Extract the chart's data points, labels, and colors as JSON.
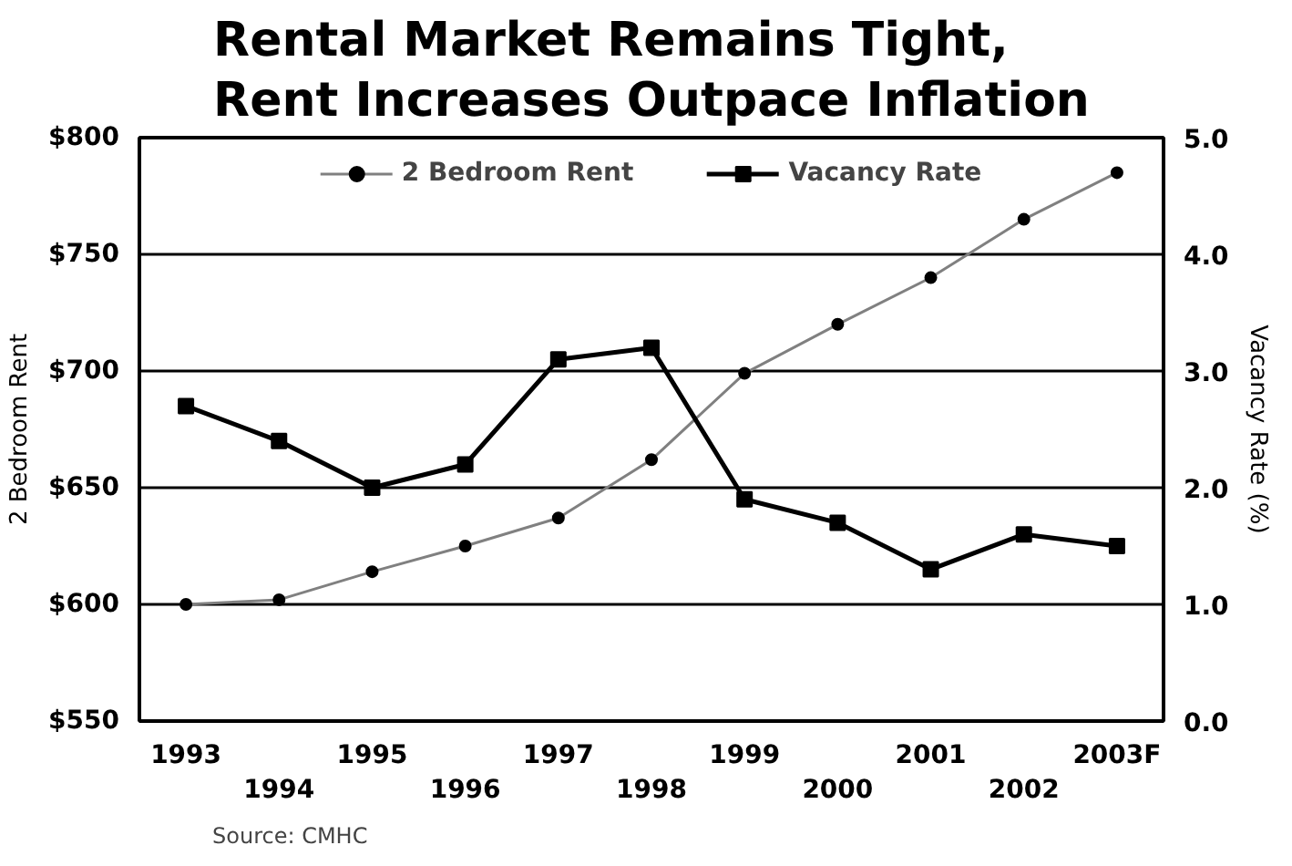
{
  "chart_data": {
    "type": "line",
    "title": "Rental Market Remains Tight,\nRent Increases Outpace Inflation",
    "categories": [
      "1993",
      "1994",
      "1995",
      "1996",
      "1997",
      "1998",
      "1999",
      "2000",
      "2001",
      "2002",
      "2003F"
    ],
    "series": [
      {
        "name": "2 Bedroom Rent",
        "color": "#808080",
        "marker": "circle",
        "values": [
          600,
          602,
          614,
          625,
          637,
          662,
          699,
          720,
          740,
          765,
          785
        ]
      },
      {
        "name": "Vacancy Rate",
        "color": "#000000",
        "marker": "square",
        "axis": "y2",
        "values": [
          2.7,
          2.4,
          2.0,
          2.2,
          3.1,
          3.2,
          1.9,
          1.7,
          1.3,
          1.6,
          1.5
        ]
      }
    ],
    "ylabel": "2 Bedroom Rent",
    "y2label": "Vacancy Rate (%)",
    "ylim": [
      550,
      800
    ],
    "yticks": [
      {
        "value": 550,
        "label": "$550"
      },
      {
        "value": 600,
        "label": "$600"
      },
      {
        "value": 650,
        "label": "$650"
      },
      {
        "value": 700,
        "label": "$700"
      },
      {
        "value": 750,
        "label": "$750"
      },
      {
        "value": 800,
        "label": "$800"
      }
    ],
    "y2lim": [
      0,
      5
    ],
    "y2ticks": [
      {
        "value": 0,
        "label": "0.0"
      },
      {
        "value": 1,
        "label": "1.0"
      },
      {
        "value": 2,
        "label": "2.0"
      },
      {
        "value": 3,
        "label": "3.0"
      },
      {
        "value": 4,
        "label": "4.0"
      },
      {
        "value": 5,
        "label": "5.0"
      }
    ],
    "grid": "y",
    "legend": "top",
    "annotations": [
      "Source:  CMHC"
    ]
  }
}
